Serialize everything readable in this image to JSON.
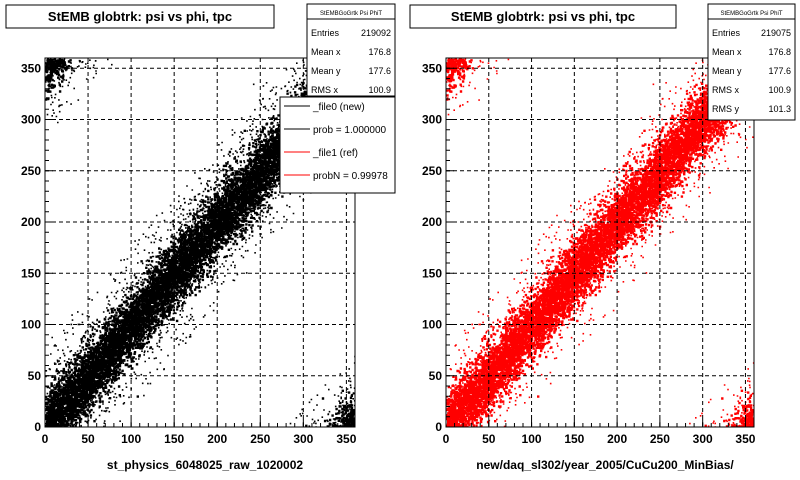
{
  "chart_data": [
    {
      "type": "scatter",
      "title": "StEMB globtrk: psi vs phi, tpc",
      "xlabel": "st_physics_6048025_raw_1020002",
      "ylabel": "",
      "xlim": [
        0,
        360
      ],
      "ylim": [
        0,
        360
      ],
      "grid": true,
      "marker_color": "#000000",
      "xticks": [
        0,
        50,
        100,
        150,
        200,
        250,
        300,
        350
      ],
      "yticks": [
        0,
        50,
        100,
        150,
        200,
        250,
        300,
        350
      ],
      "band": {
        "description": "dense diagonal band",
        "y_offset_from_x": 0,
        "half_width": 45
      },
      "stats": {
        "name": "StEMBGoGrtk Psi PhiT",
        "rows": [
          {
            "label": "Entries",
            "value": "219092"
          },
          {
            "label": "Mean x",
            "value": "176.8"
          },
          {
            "label": "Mean y",
            "value": "177.6"
          },
          {
            "label": "RMS x",
            "value": "100.9"
          }
        ]
      },
      "legend": {
        "placement": "top-right",
        "entries": [
          {
            "label": "_file0 (new)",
            "color": "#000000"
          },
          {
            "label": "prob = 1.000000",
            "color": "#000000"
          },
          {
            "label": "_file1 (ref)",
            "color": "#ff0000"
          },
          {
            "label": "probN = 0.99978",
            "color": "#ff0000"
          }
        ]
      }
    },
    {
      "type": "scatter",
      "title": "StEMB globtrk: psi vs phi, tpc",
      "xlabel": "new/daq_sl302/year_2005/CuCu200_MinBias/",
      "ylabel": "",
      "xlim": [
        0,
        360
      ],
      "ylim": [
        0,
        360
      ],
      "grid": true,
      "marker_color": "#ff0000",
      "xticks": [
        0,
        50,
        100,
        150,
        200,
        250,
        300,
        350
      ],
      "yticks": [
        0,
        50,
        100,
        150,
        200,
        250,
        300,
        350
      ],
      "band": {
        "description": "dense diagonal band",
        "y_offset_from_x": 0,
        "half_width": 45
      },
      "stats": {
        "name": "StEMBGoGrtk Psi PhiT",
        "rows": [
          {
            "label": "Entries",
            "value": "219075"
          },
          {
            "label": "Mean x",
            "value": "176.8"
          },
          {
            "label": "Mean y",
            "value": "177.6"
          },
          {
            "label": "RMS x",
            "value": "100.9"
          },
          {
            "label": "RMS y",
            "value": "101.3"
          }
        ]
      }
    }
  ]
}
